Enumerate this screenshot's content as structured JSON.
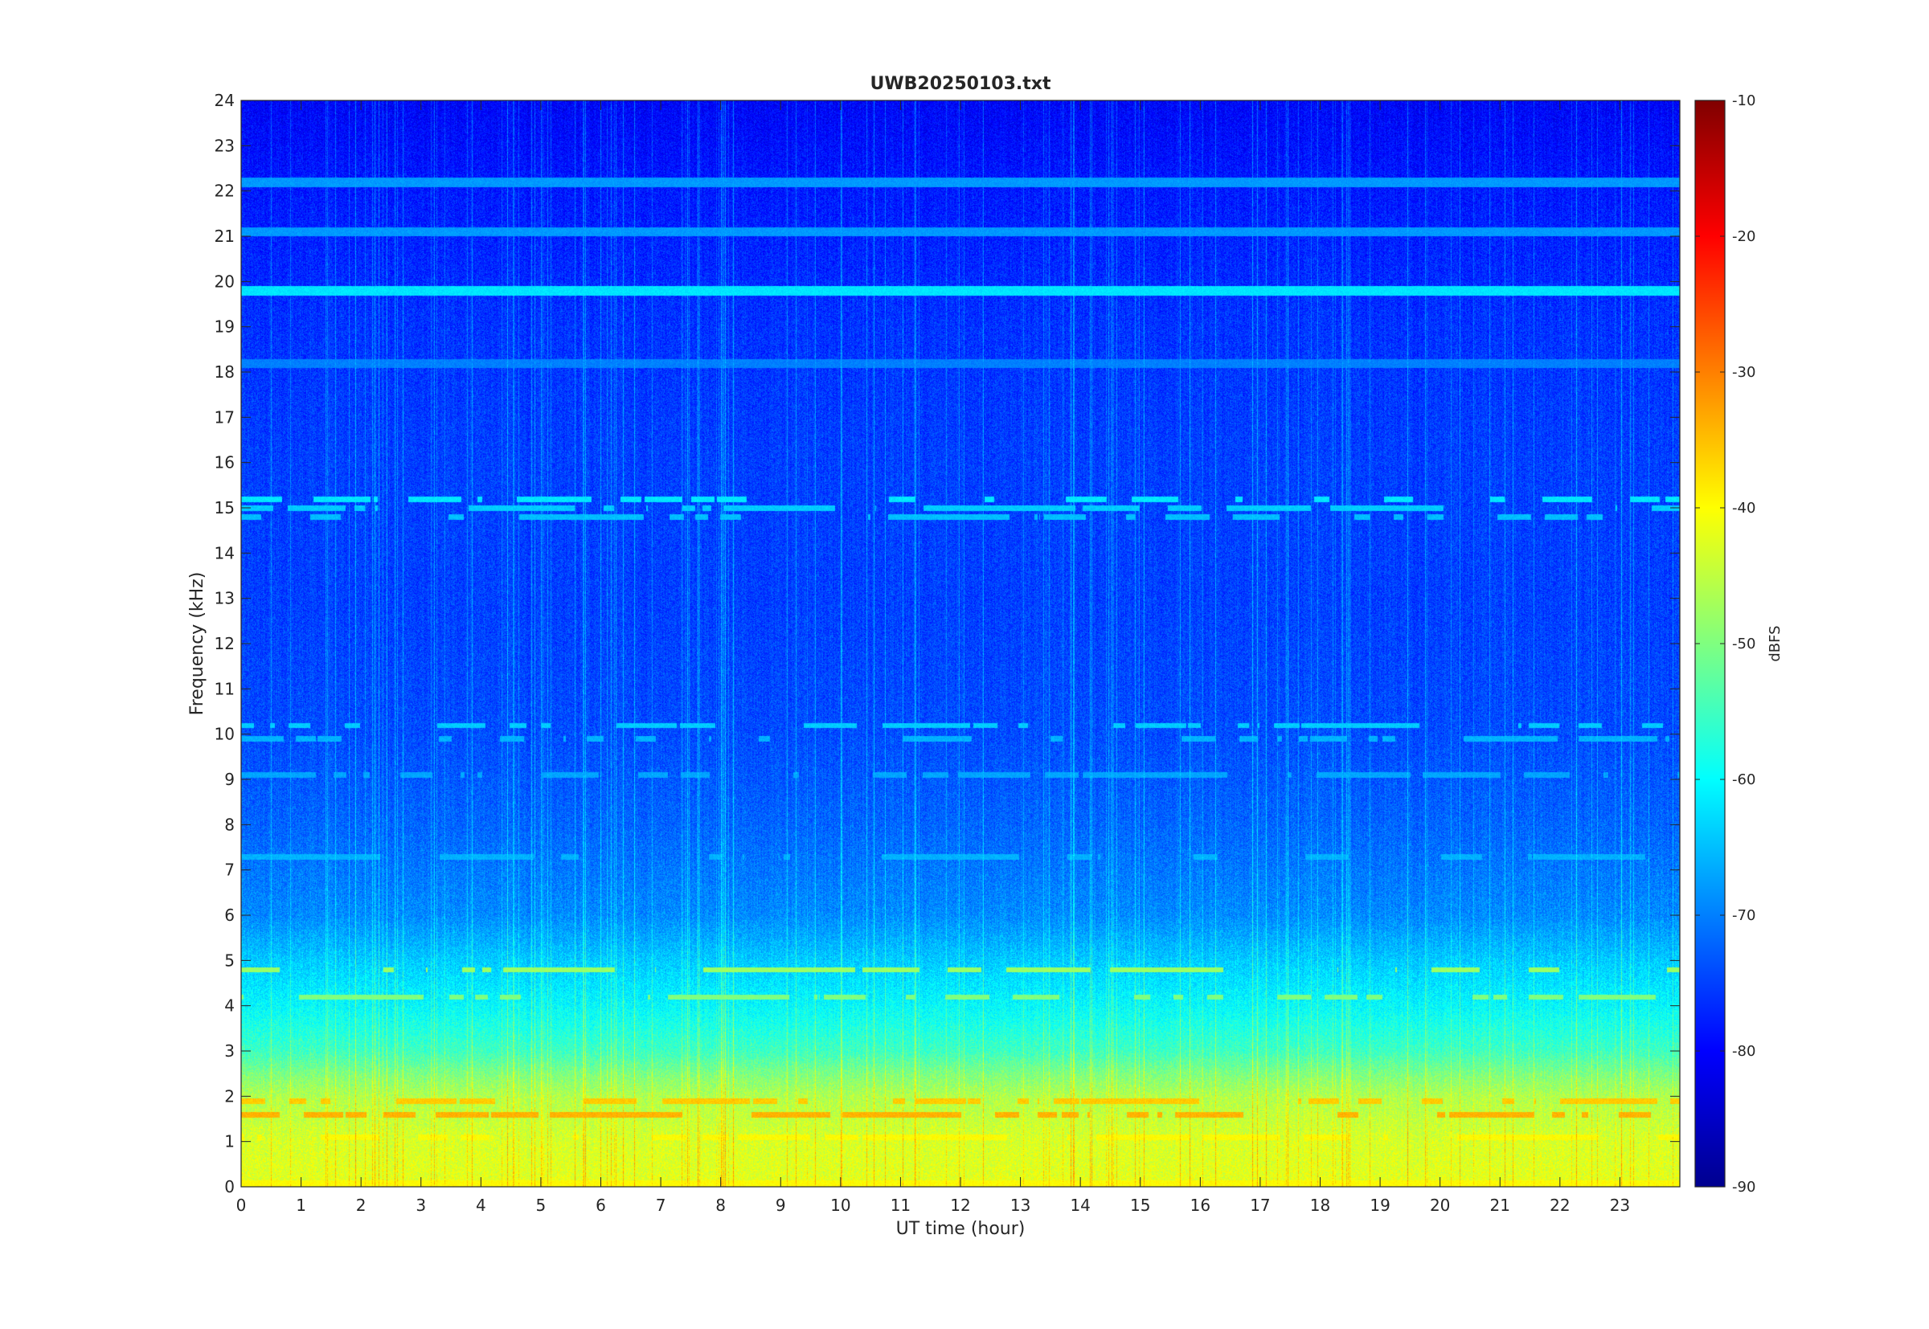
{
  "chart_data": {
    "type": "heatmap",
    "title": "UWB20250103.txt",
    "xlabel": "UT time (hour)",
    "ylabel": "Frequency (kHz)",
    "xlim": [
      0,
      24
    ],
    "ylim": [
      0,
      24
    ],
    "x_ticks": [
      "0",
      "1",
      "2",
      "3",
      "4",
      "5",
      "6",
      "7",
      "8",
      "9",
      "10",
      "11",
      "12",
      "13",
      "14",
      "15",
      "16",
      "17",
      "18",
      "19",
      "20",
      "21",
      "22",
      "23"
    ],
    "y_ticks": [
      "0",
      "1",
      "2",
      "3",
      "4",
      "5",
      "6",
      "7",
      "8",
      "9",
      "10",
      "11",
      "12",
      "13",
      "14",
      "15",
      "16",
      "17",
      "18",
      "19",
      "20",
      "21",
      "22",
      "23",
      "24"
    ],
    "colorbar": {
      "label": "dBFS",
      "range": [
        -90,
        -10
      ],
      "ticks": [
        "-10",
        "-20",
        "-30",
        "-40",
        "-50",
        "-60",
        "-70",
        "-80",
        "-90"
      ],
      "colormap": "jet"
    },
    "grid": false,
    "level_profile_dbfs": [
      {
        "freq_khz": 0.0,
        "level": -42
      },
      {
        "freq_khz": 1.0,
        "level": -43
      },
      {
        "freq_khz": 2.0,
        "level": -46
      },
      {
        "freq_khz": 2.5,
        "level": -50
      },
      {
        "freq_khz": 3.0,
        "level": -55
      },
      {
        "freq_khz": 4.0,
        "level": -60
      },
      {
        "freq_khz": 5.0,
        "level": -64
      },
      {
        "freq_khz": 6.0,
        "level": -69
      },
      {
        "freq_khz": 8.0,
        "level": -72
      },
      {
        "freq_khz": 10.0,
        "level": -74
      },
      {
        "freq_khz": 13.0,
        "level": -75
      },
      {
        "freq_khz": 16.0,
        "level": -75
      },
      {
        "freq_khz": 19.0,
        "level": -76
      },
      {
        "freq_khz": 22.0,
        "level": -78
      },
      {
        "freq_khz": 24.0,
        "level": -80
      }
    ],
    "persistent_lines_khz": [
      {
        "freq_khz": 19.8,
        "level": -62
      },
      {
        "freq_khz": 22.2,
        "level": -68
      },
      {
        "freq_khz": 21.1,
        "level": -68
      },
      {
        "freq_khz": 18.2,
        "level": -70
      },
      {
        "freq_khz": 0.05,
        "level": -40
      }
    ],
    "intermittent_lines_khz": [
      {
        "freq_khz": 15.2,
        "level": -62
      },
      {
        "freq_khz": 15.0,
        "level": -64
      },
      {
        "freq_khz": 14.8,
        "level": -65
      },
      {
        "freq_khz": 10.2,
        "level": -64
      },
      {
        "freq_khz": 9.9,
        "level": -66
      },
      {
        "freq_khz": 9.1,
        "level": -67
      },
      {
        "freq_khz": 7.3,
        "level": -66
      },
      {
        "freq_khz": 4.8,
        "level": -48
      },
      {
        "freq_khz": 4.2,
        "level": -50
      },
      {
        "freq_khz": 1.9,
        "level": -36
      },
      {
        "freq_khz": 1.6,
        "level": -34
      },
      {
        "freq_khz": 1.1,
        "level": -40
      }
    ]
  }
}
